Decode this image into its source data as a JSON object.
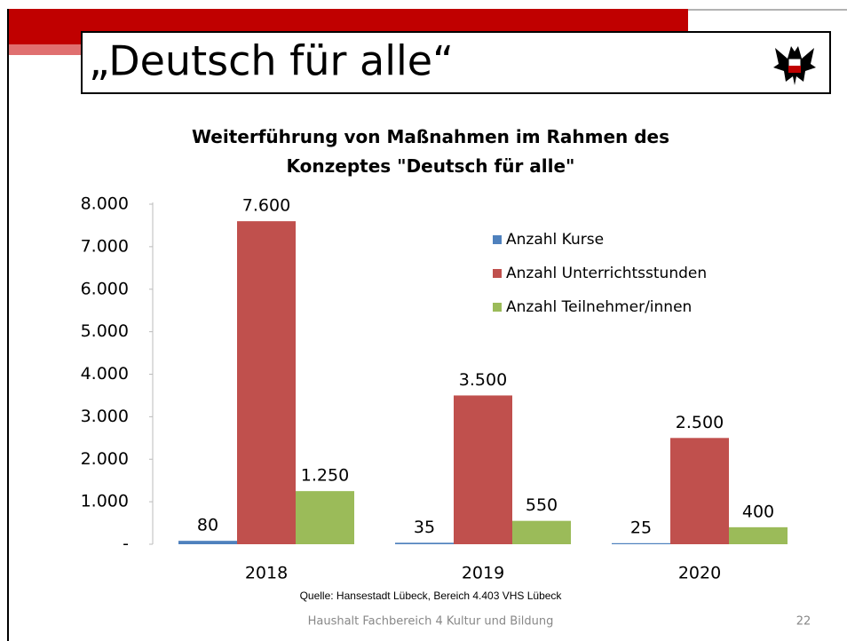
{
  "slide": {
    "title": "„Deutsch für alle“",
    "source": "Quelle: Hansestadt Lübeck, Bereich 4.403 VHS Lübeck",
    "footer": "Haushalt Fachbereich 4 Kultur und Bildung",
    "page_number": "22"
  },
  "chart_data": {
    "type": "bar",
    "title": "Weiterführung von Maßnahmen im Rahmen des Konzeptes \"Deutsch für alle\"",
    "categories": [
      "2018",
      "2019",
      "2020"
    ],
    "series": [
      {
        "name": "Anzahl Kurse",
        "color": "#4f81bd",
        "values": [
          80,
          35,
          25
        ],
        "value_labels": [
          "80",
          "35",
          "25"
        ]
      },
      {
        "name": "Anzahl Unterrichtsstunden",
        "color": "#c0504d",
        "values": [
          7600,
          3500,
          2500
        ],
        "value_labels": [
          "7.600",
          "3.500",
          "2.500"
        ]
      },
      {
        "name": "Anzahl Teilnehmer/innen",
        "color": "#9bbb59",
        "values": [
          1250,
          550,
          400
        ],
        "value_labels": [
          "1.250",
          "550",
          "400"
        ]
      }
    ],
    "ylim": [
      0,
      8000
    ],
    "yticks": [
      {
        "value": 0,
        "label": "-"
      },
      {
        "value": 1000,
        "label": "1.000"
      },
      {
        "value": 2000,
        "label": "2.000"
      },
      {
        "value": 3000,
        "label": "3.000"
      },
      {
        "value": 4000,
        "label": "4.000"
      },
      {
        "value": 5000,
        "label": "5.000"
      },
      {
        "value": 6000,
        "label": "6.000"
      },
      {
        "value": 7000,
        "label": "7.000"
      },
      {
        "value": 8000,
        "label": "8.000"
      }
    ],
    "legend": "upper right",
    "grid": false
  }
}
